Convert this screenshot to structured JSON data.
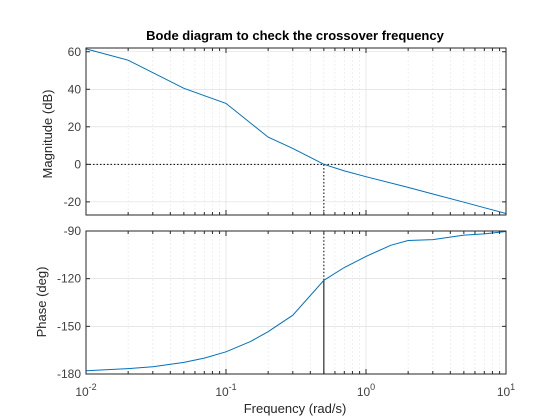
{
  "figure": {
    "title": "Bode diagram to check the crossover frequency"
  },
  "chart_data": [
    {
      "type": "line",
      "panel": "magnitude",
      "ylabel": "Magnitude (dB)",
      "xscale": "log",
      "xlim": [
        0.01,
        10
      ],
      "ylim": [
        -27,
        62
      ],
      "yticks": [
        60,
        40,
        20,
        0,
        -20
      ],
      "ytick_labels": [
        "60",
        "40",
        "20",
        "0",
        "-20"
      ],
      "grid": true,
      "series": [
        {
          "color": "#0072BD",
          "x": [
            0.01,
            0.02,
            0.05,
            0.1,
            0.2,
            0.3,
            0.5,
            0.7,
            1,
            2,
            3,
            5,
            7,
            10
          ],
          "y": [
            61.5,
            55.5,
            40.5,
            32.5,
            14.5,
            8.5,
            0,
            -3.5,
            -6.6,
            -12.3,
            -15.8,
            -20.2,
            -23.1,
            -26.2
          ]
        }
      ],
      "reference_lines": [
        {
          "kind": "horizontal",
          "y": 0,
          "style": "dotted",
          "color": "#000000"
        },
        {
          "kind": "vertical",
          "x": 0.5,
          "y_from": -27,
          "y_to": 0,
          "style": "dotted",
          "color": "#000000"
        }
      ]
    },
    {
      "type": "line",
      "panel": "phase",
      "ylabel": "Phase (deg)",
      "xlabel": "Frequency  (rad/s)",
      "xscale": "log",
      "xlim": [
        0.01,
        10
      ],
      "ylim": [
        -180,
        -90
      ],
      "yticks": [
        -90,
        -120,
        -150,
        -180
      ],
      "ytick_labels": [
        "-90",
        "-120",
        "-150",
        "-180"
      ],
      "xticks": [
        0.01,
        0.1,
        1,
        10
      ],
      "xtick_labels": [
        {
          "base": "10",
          "exp": "-2"
        },
        {
          "base": "10",
          "exp": "-1"
        },
        {
          "base": "10",
          "exp": "0"
        },
        {
          "base": "10",
          "exp": "1"
        }
      ],
      "grid": true,
      "series": [
        {
          "color": "#0072BD",
          "x": [
            0.01,
            0.02,
            0.03,
            0.05,
            0.07,
            0.1,
            0.15,
            0.2,
            0.3,
            0.5,
            0.7,
            1,
            1.5,
            2,
            3,
            5,
            7,
            10
          ],
          "y": [
            -178,
            -176.6,
            -175.4,
            -172.7,
            -170,
            -166,
            -159.5,
            -153.4,
            -143,
            -121,
            -113,
            -106,
            -99,
            -96,
            -95.4,
            -92.6,
            -91.8,
            -90.3
          ]
        }
      ],
      "reference_lines": [
        {
          "kind": "vertical",
          "x": 0.5,
          "y_from": -121,
          "y_to": -90,
          "style": "dotted",
          "color": "#000000"
        },
        {
          "kind": "vertical",
          "x": 0.5,
          "y_from": -180,
          "y_to": -121,
          "style": "solid",
          "color": "#000000"
        }
      ]
    }
  ]
}
